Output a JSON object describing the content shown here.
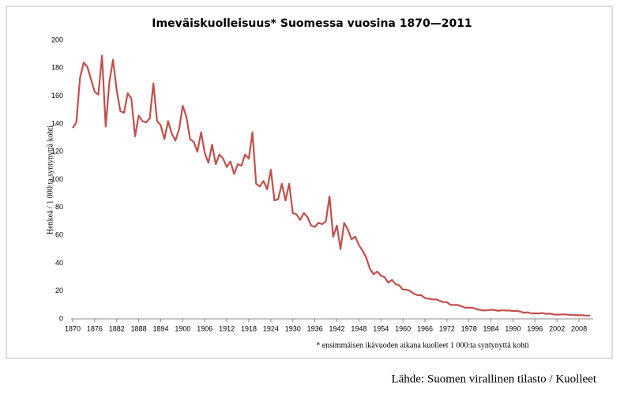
{
  "chart_data": {
    "type": "line",
    "title": "Imeväiskuolleisuus* Suomessa vuosina 1870—2011",
    "ylabel": "Henkeä / 1 000:ta syntynyttä kohti",
    "note": "* ensimmäisen ikävuoden aikana kuolleet 1 000:ta syntynyttä kohti",
    "source": "Lähde: Suomen virallinen tilasto / Kuolleet",
    "x": [
      1870,
      1871,
      1872,
      1873,
      1874,
      1875,
      1876,
      1877,
      1878,
      1879,
      1880,
      1881,
      1882,
      1883,
      1884,
      1885,
      1886,
      1887,
      1888,
      1889,
      1890,
      1891,
      1892,
      1893,
      1894,
      1895,
      1896,
      1897,
      1898,
      1899,
      1900,
      1901,
      1902,
      1903,
      1904,
      1905,
      1906,
      1907,
      1908,
      1909,
      1910,
      1911,
      1912,
      1913,
      1914,
      1915,
      1916,
      1917,
      1918,
      1919,
      1920,
      1921,
      1922,
      1923,
      1924,
      1925,
      1926,
      1927,
      1928,
      1929,
      1930,
      1931,
      1932,
      1933,
      1934,
      1935,
      1936,
      1937,
      1938,
      1939,
      1940,
      1941,
      1942,
      1943,
      1944,
      1945,
      1946,
      1947,
      1948,
      1949,
      1950,
      1951,
      1952,
      1953,
      1954,
      1955,
      1956,
      1957,
      1958,
      1959,
      1960,
      1961,
      1962,
      1963,
      1964,
      1965,
      1966,
      1967,
      1968,
      1969,
      1970,
      1971,
      1972,
      1973,
      1974,
      1975,
      1976,
      1977,
      1978,
      1979,
      1980,
      1981,
      1982,
      1983,
      1984,
      1985,
      1986,
      1987,
      1988,
      1989,
      1990,
      1991,
      1992,
      1993,
      1994,
      1995,
      1996,
      1997,
      1998,
      1999,
      2000,
      2001,
      2002,
      2003,
      2004,
      2005,
      2006,
      2007,
      2008,
      2009,
      2010,
      2011
    ],
    "series": [
      {
        "name": "Imeväiskuolleisuus",
        "color": "#c0504d",
        "values": [
          137,
          141,
          173,
          184,
          181,
          172,
          163,
          161,
          189,
          138,
          170,
          186,
          164,
          149,
          148,
          162,
          158,
          131,
          146,
          142,
          141,
          144,
          169,
          142,
          139,
          129,
          142,
          133,
          128,
          136,
          153,
          145,
          129,
          127,
          120,
          134,
          119,
          112,
          125,
          111,
          118,
          115,
          109,
          113,
          104,
          111,
          110,
          118,
          115,
          134,
          97,
          95,
          99,
          93,
          107,
          85,
          86,
          97,
          85,
          97,
          76,
          75,
          71,
          76,
          73,
          67,
          66,
          69,
          68,
          70,
          88,
          59,
          67,
          50,
          69,
          64,
          57,
          59,
          53,
          49,
          44,
          36,
          32,
          34,
          31,
          30,
          26,
          28,
          25,
          24,
          21,
          21,
          20,
          18,
          17,
          17,
          15,
          14.5,
          14,
          14,
          13,
          12,
          12,
          10,
          10,
          10,
          9,
          8,
          8,
          8,
          7,
          6.5,
          6,
          6.2,
          6.5,
          6.3,
          5.8,
          6.2,
          6,
          6,
          5.6,
          5.8,
          5.2,
          4.4,
          4.7,
          3.9,
          4,
          3.9,
          4.2,
          3.6,
          3.8,
          3.2,
          3,
          3.1,
          3.3,
          3,
          2.8,
          2.7,
          2.6,
          2.6,
          2.3,
          2.4
        ]
      }
    ],
    "xlim": [
      1870,
      2011
    ],
    "xticks": [
      1870,
      1876,
      1882,
      1888,
      1894,
      1900,
      1906,
      1912,
      1918,
      1924,
      1930,
      1936,
      1942,
      1948,
      1954,
      1960,
      1966,
      1972,
      1978,
      1984,
      1990,
      1996,
      2002,
      2008
    ],
    "ylim": [
      0,
      200
    ],
    "yticks": [
      0,
      20,
      40,
      60,
      80,
      100,
      120,
      140,
      160,
      180,
      200
    ],
    "grid": false
  }
}
